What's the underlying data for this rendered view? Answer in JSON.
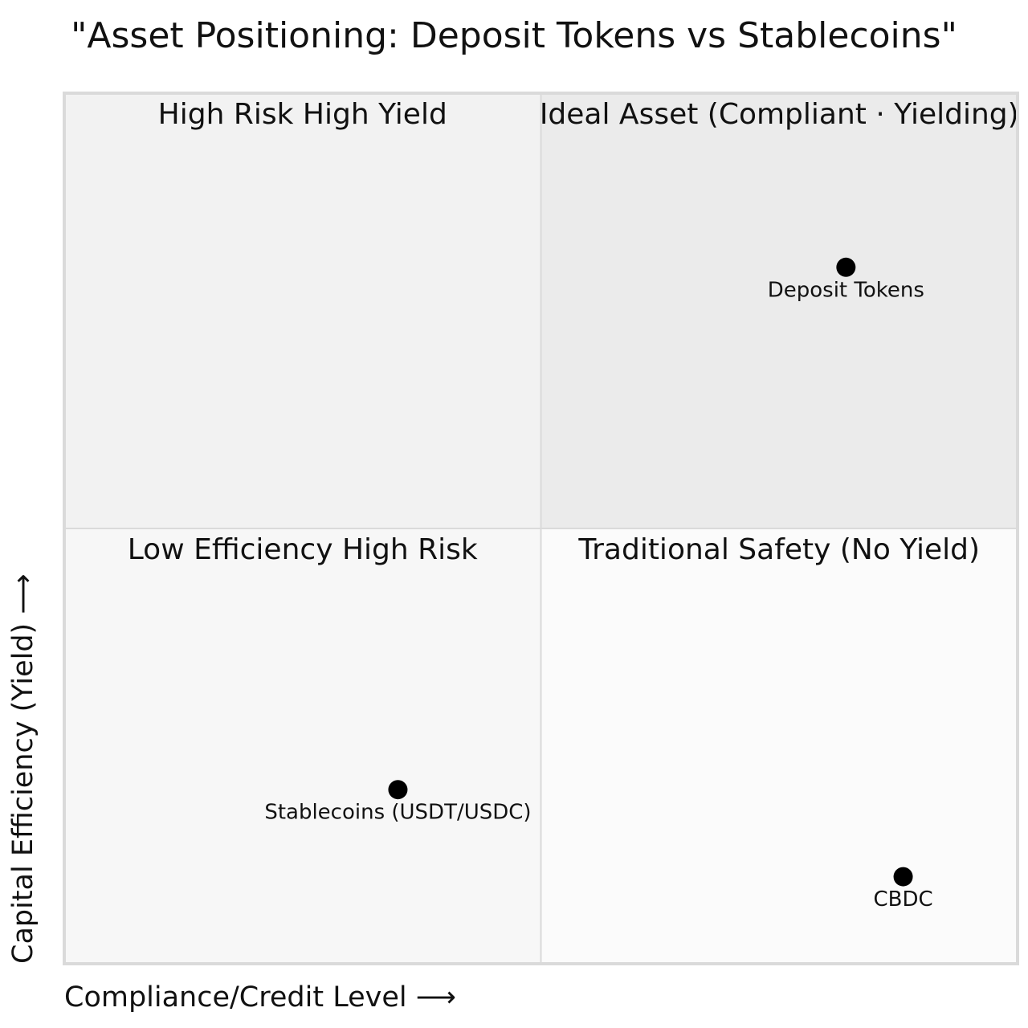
{
  "chart_data": {
    "type": "quadrant",
    "title": "\"Asset Positioning: Deposit Tokens vs Stablecoins\"",
    "x_label": "Compliance/Credit Level ⟶",
    "y_label": "Capital Efficiency (Yield) ⟶",
    "quadrants": [
      "High Risk High Yield",
      "Ideal Asset (Compliant · Yielding)",
      "Low Efficiency High Risk",
      "Traditional Safety (No Yield)"
    ],
    "quadrant_colors": [
      "#f2f2f2",
      "#ebebeb",
      "#f7f7f7",
      "#fbfbfb"
    ],
    "xlim": [
      0,
      1
    ],
    "ylim": [
      0,
      1
    ],
    "point_color": "#000000",
    "points": [
      {
        "name": "Deposit Tokens",
        "x": 0.82,
        "y": 0.8
      },
      {
        "name": "Stablecoins (USDT/USDC)",
        "x": 0.35,
        "y": 0.2
      },
      {
        "name": "CBDC",
        "x": 0.88,
        "y": 0.1
      }
    ]
  }
}
